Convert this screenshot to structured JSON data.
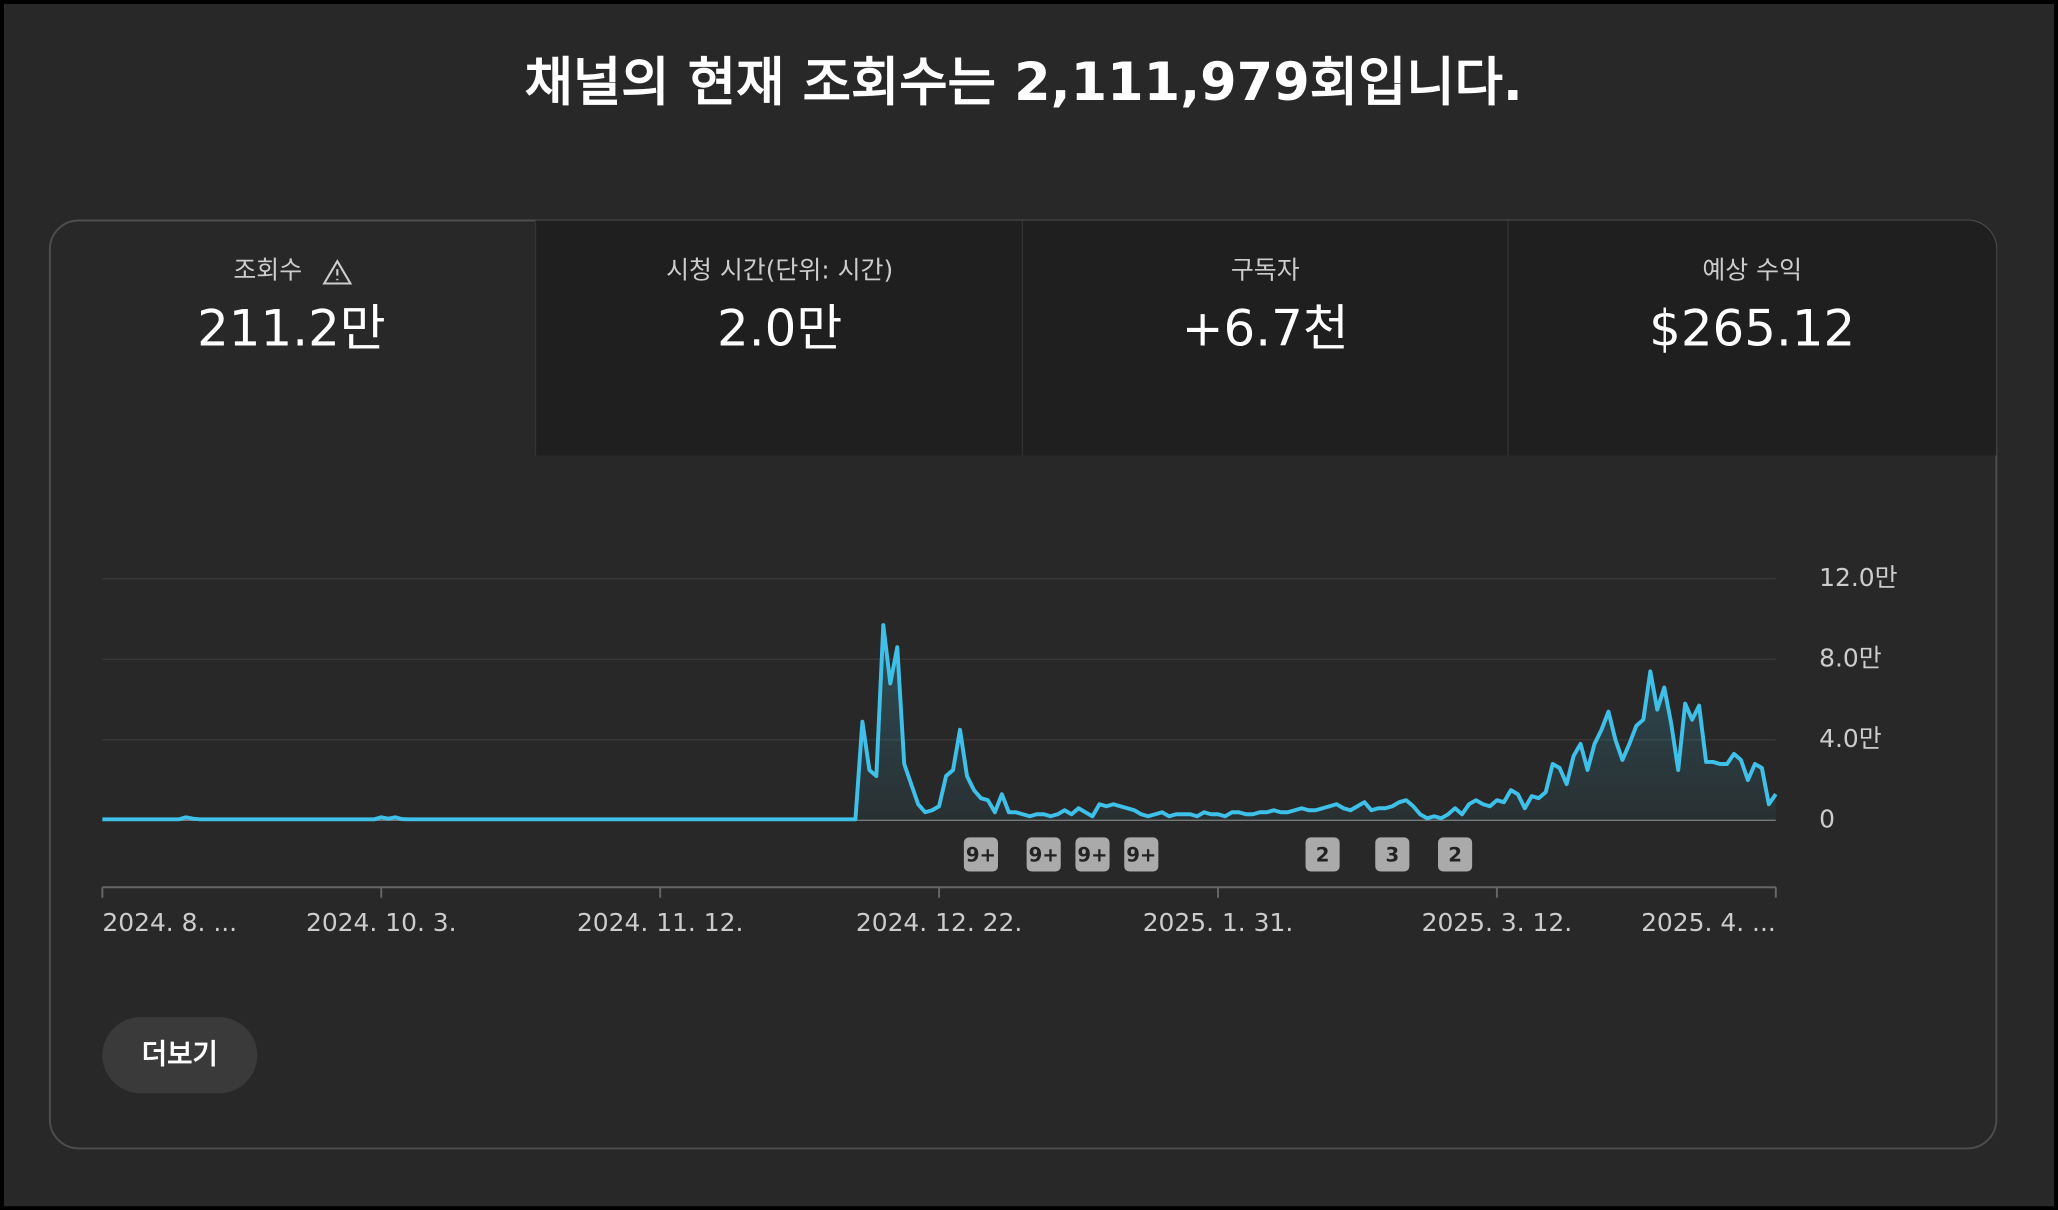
{
  "header": {
    "title": "채널의 현재 조회수는 2,111,979회입니다."
  },
  "tabs": [
    {
      "label": "조회수",
      "value": "211.2만"
    },
    {
      "label": "시청 시간(단위: 시간)",
      "value": "2.0만"
    },
    {
      "label": "구독자",
      "value": "+6.7천"
    },
    {
      "label": "예상 수익",
      "value": "$265.12"
    }
  ],
  "chart_data": {
    "type": "line",
    "color": "#3ec0e8",
    "grid": true,
    "categories": [
      "2024. 8. ...",
      null,
      null,
      null,
      null,
      null,
      null,
      null,
      null,
      null,
      null,
      null,
      null,
      null,
      null,
      null,
      null,
      null,
      null,
      null,
      null,
      null,
      null,
      null,
      null,
      null,
      null,
      null,
      null,
      null,
      null,
      null,
      null,
      null,
      null,
      null,
      null,
      null,
      null,
      null,
      "2024. 10. 3.",
      null,
      null,
      null,
      null,
      null,
      null,
      null,
      null,
      null,
      null,
      null,
      null,
      null,
      null,
      null,
      null,
      null,
      null,
      null,
      null,
      null,
      null,
      null,
      null,
      null,
      null,
      null,
      null,
      null,
      null,
      null,
      null,
      null,
      null,
      null,
      null,
      null,
      null,
      null,
      "2024. 11. 12.",
      null,
      null,
      null,
      null,
      null,
      null,
      null,
      null,
      null,
      null,
      null,
      null,
      null,
      null,
      null,
      null,
      null,
      null,
      null,
      null,
      null,
      null,
      null,
      null,
      null,
      null,
      null,
      null,
      null,
      null,
      null,
      null,
      null,
      null,
      null,
      null,
      null,
      null,
      null,
      "2024. 12. 22.",
      null,
      null,
      null,
      null,
      null,
      null,
      null,
      null,
      null,
      null,
      null,
      null,
      null,
      null,
      null,
      null,
      null,
      null,
      null,
      null,
      null,
      null,
      null,
      null,
      null,
      null,
      null,
      null,
      null,
      null,
      null,
      null,
      null,
      null,
      null,
      null,
      null,
      null,
      null,
      "2025. 1. 31.",
      null,
      null,
      null,
      null,
      null,
      null,
      null,
      null,
      null,
      null,
      null,
      null,
      null,
      null,
      null,
      null,
      null,
      null,
      null,
      null,
      null,
      null,
      null,
      null,
      null,
      null,
      null,
      null,
      null,
      null,
      null,
      null,
      null,
      null,
      null,
      null,
      null,
      null,
      null,
      "2025. 3. 12.",
      null,
      null,
      null,
      null,
      null,
      null,
      null,
      null,
      null,
      null,
      null,
      null,
      null,
      null,
      null,
      null,
      null,
      null,
      null,
      null,
      null,
      null,
      null,
      null,
      null,
      null,
      null,
      null,
      null,
      null,
      null,
      null,
      null,
      null,
      null,
      null,
      null,
      null,
      null,
      "2025. 4. ..."
    ],
    "values": [
      500,
      500,
      500,
      500,
      500,
      500,
      500,
      500,
      500,
      500,
      500,
      500,
      1500,
      800,
      500,
      500,
      500,
      500,
      500,
      500,
      500,
      500,
      500,
      500,
      500,
      500,
      500,
      500,
      500,
      500,
      500,
      500,
      500,
      500,
      500,
      500,
      500,
      500,
      500,
      500,
      1500,
      800,
      1500,
      600,
      500,
      500,
      500,
      500,
      500,
      500,
      500,
      500,
      500,
      500,
      500,
      500,
      500,
      500,
      500,
      500,
      500,
      500,
      500,
      500,
      500,
      500,
      500,
      500,
      500,
      500,
      500,
      500,
      500,
      500,
      500,
      500,
      500,
      500,
      500,
      500,
      500,
      500,
      500,
      500,
      500,
      500,
      500,
      500,
      500,
      500,
      500,
      500,
      500,
      500,
      500,
      500,
      500,
      500,
      500,
      500,
      500,
      500,
      500,
      500,
      500,
      500,
      500,
      500,
      500,
      49000,
      25000,
      22000,
      97000,
      68000,
      86000,
      28000,
      18000,
      8000,
      4000,
      5000,
      7000,
      22000,
      25000,
      45000,
      22000,
      15000,
      11000,
      10000,
      4000,
      13000,
      4000,
      4000,
      3000,
      2000,
      3000,
      3000,
      2000,
      3000,
      5000,
      3000,
      6000,
      4000,
      2000,
      8000,
      7000,
      8000,
      7000,
      6000,
      5000,
      3000,
      2000,
      3000,
      4000,
      2000,
      3000,
      3000,
      3000,
      2000,
      4000,
      3000,
      3000,
      2000,
      4000,
      4000,
      3000,
      3000,
      4000,
      4000,
      5000,
      4000,
      4000,
      5000,
      6000,
      5000,
      5000,
      6000,
      7000,
      8000,
      6000,
      5000,
      7000,
      9000,
      5000,
      6000,
      6000,
      7000,
      9000,
      10000,
      7000,
      3000,
      1000,
      2000,
      1000,
      3000,
      6000,
      3000,
      8000,
      10000,
      8000,
      7000,
      10000,
      9000,
      15000,
      13000,
      6000,
      12000,
      11000,
      14000,
      28000,
      26000,
      18000,
      32000,
      38000,
      25000,
      38000,
      45000,
      54000,
      40000,
      30000,
      38000,
      47000,
      50000,
      74000,
      55000,
      66000,
      48000,
      25000,
      58000,
      50000,
      57000,
      29000,
      29000,
      28000,
      28000,
      33000,
      30000,
      20000,
      28000,
      26000,
      8000,
      13000
    ],
    "ylim": [
      0,
      120000
    ],
    "yticks": [
      0,
      {
        "value": 40000,
        "label": "4.0만"
      },
      {
        "value": 80000,
        "label": "8.0만"
      },
      {
        "value": 120000,
        "label": "12.0만"
      }
    ],
    "markers": [
      {
        "label": "9+",
        "x": 126
      },
      {
        "label": "9+",
        "x": 135
      },
      {
        "label": "9+",
        "x": 142
      },
      {
        "label": "9+",
        "x": 149
      },
      {
        "label": "2",
        "x": 175
      },
      {
        "label": "3",
        "x": 185
      },
      {
        "label": "2",
        "x": 194
      }
    ]
  },
  "button": {
    "label": "더보기"
  }
}
